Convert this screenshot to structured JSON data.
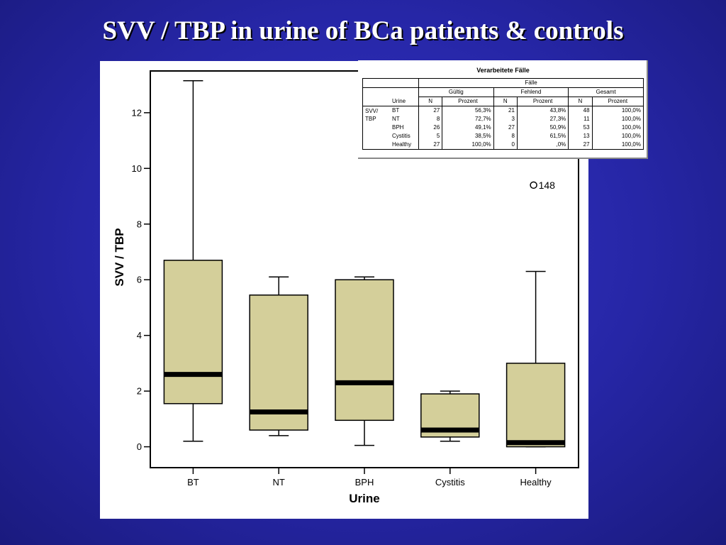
{
  "slide": {
    "title": "SVV / TBP in urine of BCa patients & controls"
  },
  "chart_data": {
    "type": "box",
    "xlabel": "Urine",
    "ylabel": "SVV / TBP",
    "ylim": [
      -0.75,
      13.5
    ],
    "yticks": [
      0,
      2,
      4,
      6,
      8,
      10,
      12
    ],
    "categories": [
      "BT",
      "NT",
      "BPH",
      "Cystitis",
      "Healthy"
    ],
    "boxes": [
      {
        "category": "BT",
        "whisker_low": 0.2,
        "q1": 1.55,
        "median": 2.6,
        "q3": 6.7,
        "whisker_high": 13.15
      },
      {
        "category": "NT",
        "whisker_low": 0.4,
        "q1": 0.6,
        "median": 1.25,
        "q3": 5.45,
        "whisker_high": 6.1
      },
      {
        "category": "BPH",
        "whisker_low": 0.05,
        "q1": 0.95,
        "median": 2.3,
        "q3": 6.0,
        "whisker_high": 6.1
      },
      {
        "category": "Cystitis",
        "whisker_low": 0.2,
        "q1": 0.35,
        "median": 0.6,
        "q3": 1.9,
        "whisker_high": 2.0
      },
      {
        "category": "Healthy",
        "whisker_low": 0.0,
        "q1": 0.0,
        "median": 0.15,
        "q3": 3.0,
        "whisker_high": 6.3
      }
    ],
    "outliers": [
      {
        "category": "Healthy",
        "value": 9.4,
        "label": "148"
      }
    ],
    "box_fill": "#d4cf9a",
    "grid": false
  },
  "table": {
    "caption": "Verarbeitete Fälle",
    "header_top": "Fälle",
    "groups": [
      "Gültig",
      "Fehlend",
      "Gesamt"
    ],
    "row_var_header": "Urine",
    "col_n": "N",
    "col_pct": "Prozent",
    "variable": "SVV/ TBP",
    "rows": [
      {
        "label": "BT",
        "valid_n": "27",
        "valid_pct": "56,3%",
        "missing_n": "21",
        "missing_pct": "43,8%",
        "total_n": "48",
        "total_pct": "100,0%"
      },
      {
        "label": "NT",
        "valid_n": "8",
        "valid_pct": "72,7%",
        "missing_n": "3",
        "missing_pct": "27,3%",
        "total_n": "11",
        "total_pct": "100,0%"
      },
      {
        "label": "BPH",
        "valid_n": "26",
        "valid_pct": "49,1%",
        "missing_n": "27",
        "missing_pct": "50,9%",
        "total_n": "53",
        "total_pct": "100,0%"
      },
      {
        "label": "Cystitis",
        "valid_n": "5",
        "valid_pct": "38,5%",
        "missing_n": "8",
        "missing_pct": "61,5%",
        "total_n": "13",
        "total_pct": "100,0%"
      },
      {
        "label": "Healthy",
        "valid_n": "27",
        "valid_pct": "100,0%",
        "missing_n": "0",
        "missing_pct": ",0%",
        "total_n": "27",
        "total_pct": "100,0%"
      }
    ]
  }
}
